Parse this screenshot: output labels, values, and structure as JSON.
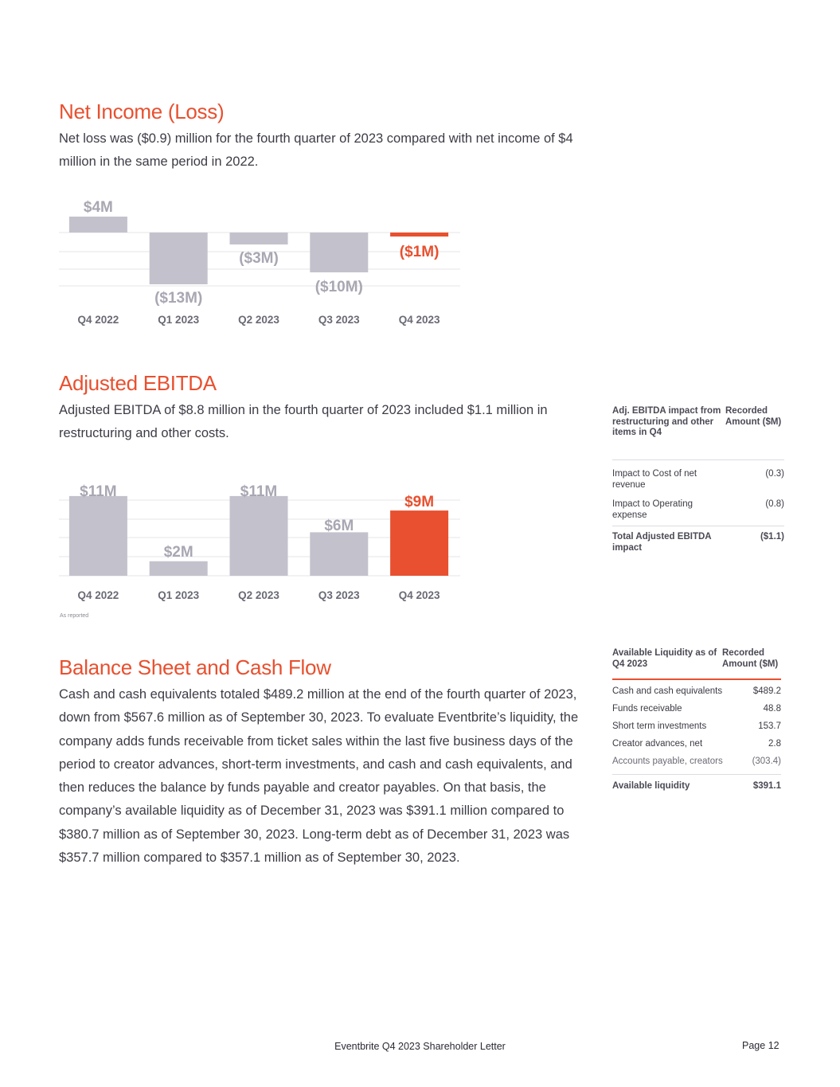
{
  "net_income": {
    "heading": "Net Income (Loss)",
    "body": "Net loss was ($0.9) million for the fourth quarter of 2023 compared with net income of $4 million in the same period in 2022."
  },
  "adjusted_ebitda": {
    "heading": "Adjusted EBITDA",
    "body": "Adjusted EBITDA of $8.8 million in the fourth quarter of 2023 included $1.1 million in restructuring and other costs.",
    "note": "As reported",
    "table": {
      "col1": "Adj. EBITDA impact from restructuring and other items in Q4",
      "col2": "Recorded Amount ($M)",
      "rows": [
        {
          "label": "Impact to Cost of net revenue",
          "value": "(0.3)"
        },
        {
          "label": "Impact to Operating expense",
          "value": "(0.8)"
        }
      ],
      "total": {
        "label": "Total Adjusted EBITDA impact",
        "value": "($1.1)"
      }
    }
  },
  "balance_sheet": {
    "heading": "Balance Sheet and Cash Flow",
    "body": "Cash and cash equivalents totaled $489.2 million at the end of the fourth quarter of 2023, down from $567.6 million as of September 30, 2023. To evaluate Eventbrite’s liquidity, the company adds funds receivable from ticket sales within the last five business days of the period to creator advances, short-term investments, and cash and cash equivalents, and then reduces the balance by funds payable and creator payables. On that basis, the company’s available liquidity as of December 31, 2023 was $391.1 million compared to $380.7 million as of September 30, 2023. Long-term debt as of December 31, 2023 was $357.7 million compared to $357.1 million as of September 30, 2023.",
    "table": {
      "col1": "Available Liquidity as of Q4 2023",
      "col2": "Recorded Amount ($M)",
      "rows": [
        {
          "label": "Cash and cash equivalents",
          "value": "$489.2"
        },
        {
          "label": "Funds receivable",
          "value": "48.8"
        },
        {
          "label": "Short term investments",
          "value": "153.7"
        },
        {
          "label": "Creator advances, net",
          "value": "2.8"
        },
        {
          "label": "Accounts payable, creators",
          "value": "(303.4)"
        }
      ],
      "total": {
        "label": "Available liquidity",
        "value": "$391.1"
      }
    }
  },
  "footer": {
    "title": "Eventbrite Q4 2023 Shareholder Letter",
    "page_label": "Page",
    "page_number": "12"
  },
  "colors": {
    "accent": "#e8502f",
    "bar_gray": "#c3c2cc",
    "label_gray": "#a8a7b2"
  },
  "chart_data": [
    {
      "type": "bar",
      "categories": [
        "Q4 2022",
        "Q1 2023",
        "Q2 2023",
        "Q3 2023",
        "Q4 2023"
      ],
      "values": [
        4,
        -13,
        -3,
        -10,
        -1
      ],
      "labels": [
        "$4M",
        "($13M)",
        "($3M)",
        "($10M)",
        "($1M)"
      ],
      "highlight_index": 4,
      "grid": true
    },
    {
      "type": "bar",
      "categories": [
        "Q4 2022",
        "Q1 2023",
        "Q2 2023",
        "Q3 2023",
        "Q4 2023"
      ],
      "values": [
        11,
        2,
        11,
        6,
        9
      ],
      "labels": [
        "$11M",
        "$2M",
        "$11M",
        "$6M",
        "$9M"
      ],
      "highlight_index": 4,
      "grid": true
    }
  ]
}
